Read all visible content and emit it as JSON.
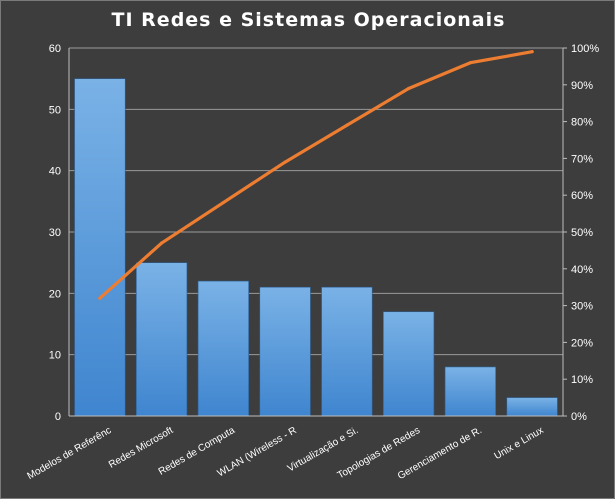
{
  "chart_data": {
    "type": "bar",
    "title": "TI Redes e Sistemas  Operacionais",
    "categories": [
      "Modelos de Referênc",
      "Redes Microsoft",
      "Redes de Computa",
      "WLAN (Wireless - R",
      "Virtualização e Si.",
      "Topologias de Redes",
      "Gerenciamento de R.",
      "Unix e Linux"
    ],
    "series": [
      {
        "values": [
          55,
          25,
          22,
          21,
          21,
          17,
          8,
          3
        ]
      },
      {
        "values": [
          32,
          47,
          58,
          69,
          79,
          89,
          96,
          99
        ],
        "axis": "secondary"
      }
    ],
    "ylim": [
      0,
      60
    ],
    "y_ticks": [
      "0",
      "10",
      "20",
      "30",
      "40",
      "50",
      "60"
    ],
    "y2lim": [
      0,
      100
    ],
    "y2_ticks": [
      "0%",
      "10%",
      "20%",
      "30%",
      "40%",
      "50%",
      "60%",
      "70%",
      "80%",
      "90%",
      "100%"
    ],
    "grid": true,
    "colors": {
      "background": "#3d3d3d",
      "bar": "#5b9bd5",
      "line": "#ed7d31",
      "grid": "#9a9a9a"
    }
  }
}
